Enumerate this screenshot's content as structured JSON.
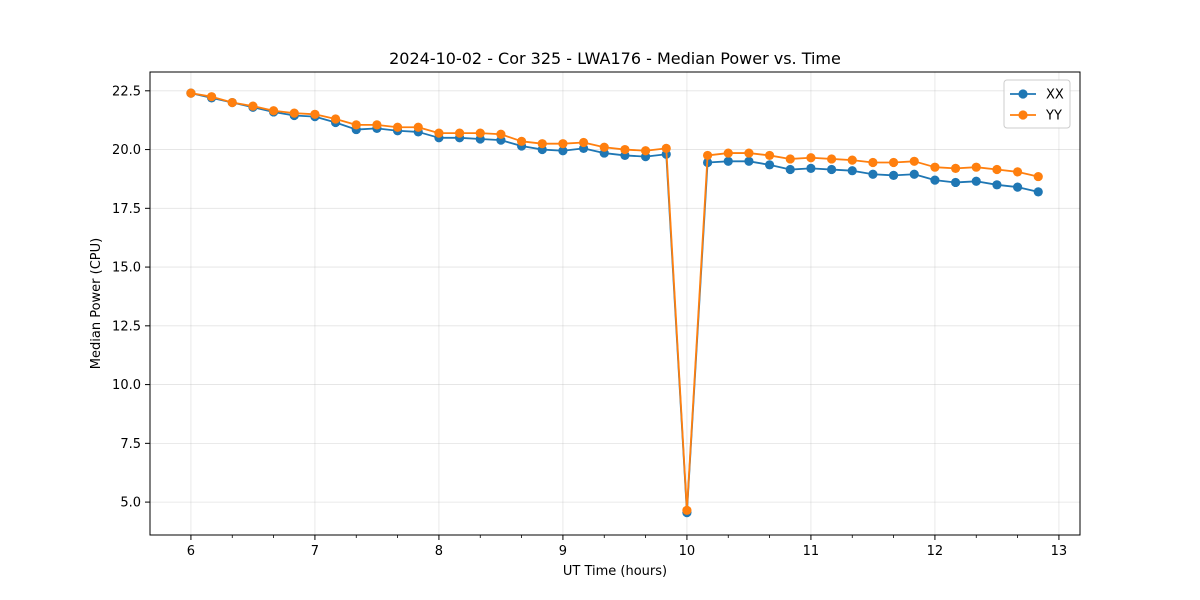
{
  "chart_data": {
    "type": "line",
    "title": "2024-10-02 - Cor 325 - LWA176 - Median Power vs. Time",
    "xlabel": "UT Time (hours)",
    "ylabel": "Median Power (CPU)",
    "xlim": [
      5.67,
      13.17
    ],
    "ylim": [
      3.6,
      23.3
    ],
    "xticks": [
      6,
      7,
      8,
      9,
      10,
      11,
      12,
      13
    ],
    "yticks": [
      5.0,
      7.5,
      10.0,
      12.5,
      15.0,
      17.5,
      20.0,
      22.5
    ],
    "xtick_labels": [
      "6",
      "7",
      "8",
      "9",
      "10",
      "11",
      "12",
      "13"
    ],
    "ytick_labels": [
      "5.0",
      "7.5",
      "10.0",
      "12.5",
      "15.0",
      "17.5",
      "20.0",
      "22.5"
    ],
    "grid": true,
    "legend_position": "top-right",
    "x": [
      6.0,
      6.1667,
      6.3333,
      6.5,
      6.6667,
      6.8333,
      7.0,
      7.1667,
      7.3333,
      7.5,
      7.6667,
      7.8333,
      8.0,
      8.1667,
      8.3333,
      8.5,
      8.6667,
      8.8333,
      9.0,
      9.1667,
      9.3333,
      9.5,
      9.6667,
      9.8333,
      10.0,
      10.1667,
      10.3333,
      10.5,
      10.6667,
      10.8333,
      11.0,
      11.1667,
      11.3333,
      11.5,
      11.6667,
      11.8333,
      12.0,
      12.1667,
      12.3333,
      12.5,
      12.6667,
      12.8333
    ],
    "series": [
      {
        "name": "XX",
        "color": "#1f77b4",
        "values": [
          22.4,
          22.2,
          22.0,
          21.8,
          21.6,
          21.45,
          21.4,
          21.15,
          20.85,
          20.9,
          20.8,
          20.75,
          20.5,
          20.5,
          20.45,
          20.4,
          20.15,
          20.0,
          19.95,
          20.05,
          19.85,
          19.75,
          19.7,
          19.8,
          4.55,
          19.45,
          19.5,
          19.5,
          19.35,
          19.15,
          19.2,
          19.15,
          19.1,
          18.95,
          18.9,
          18.95,
          18.7,
          18.6,
          18.65,
          18.5,
          18.4,
          18.2
        ]
      },
      {
        "name": "YY",
        "color": "#ff7f0e",
        "values": [
          22.4,
          22.25,
          22.0,
          21.85,
          21.65,
          21.55,
          21.5,
          21.3,
          21.05,
          21.05,
          20.95,
          20.95,
          20.7,
          20.7,
          20.7,
          20.65,
          20.35,
          20.25,
          20.25,
          20.3,
          20.1,
          20.0,
          19.95,
          20.05,
          4.65,
          19.75,
          19.85,
          19.85,
          19.75,
          19.6,
          19.65,
          19.6,
          19.55,
          19.45,
          19.45,
          19.5,
          19.25,
          19.2,
          19.25,
          19.15,
          19.05,
          18.85
        ]
      }
    ]
  }
}
